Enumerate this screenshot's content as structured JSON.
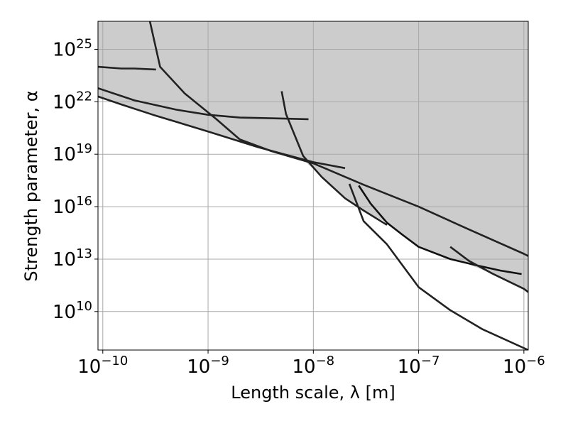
{
  "chart_data": {
    "type": "line",
    "title": "",
    "xlabel": "Length scale, λ [m]",
    "ylabel": "Strength parameter, α",
    "xscale": "log",
    "yscale": "log",
    "xlim": [
      9e-11,
      1.1e-06
    ],
    "ylim": [
      63000000.0,
      4e+26
    ],
    "grid": true,
    "shaded_region": "excluded area above the constraint curves (gray)",
    "x_ticks": [
      {
        "value": 1e-10,
        "base": "10",
        "exp": "−10"
      },
      {
        "value": 1e-09,
        "base": "10",
        "exp": "−9"
      },
      {
        "value": 1e-08,
        "base": "10",
        "exp": "−8"
      },
      {
        "value": 1e-07,
        "base": "10",
        "exp": "−7"
      },
      {
        "value": 1e-06,
        "base": "10",
        "exp": "−6"
      }
    ],
    "y_ticks": [
      {
        "value": 10000000000.0,
        "base": "10",
        "exp": "10"
      },
      {
        "value": 10000000000000.0,
        "base": "10",
        "exp": "13"
      },
      {
        "value": 1e+16,
        "base": "10",
        "exp": "16"
      },
      {
        "value": 1e+19,
        "base": "10",
        "exp": "19"
      },
      {
        "value": 1e+22,
        "base": "10",
        "exp": "22"
      },
      {
        "value": 1e+25,
        "base": "10",
        "exp": "25"
      }
    ],
    "series": [
      {
        "color": "#222222",
        "points": [
          [
            9e-11,
            2e+22
          ],
          [
            1.5e-10,
            7e+21
          ],
          [
            3e-10,
            1.8e+21
          ],
          [
            1e-09,
            2e+20
          ],
          [
            3e-09,
            2.5e+19
          ],
          [
            1e-08,
            3.5e+18
          ],
          [
            2e-08,
            1.6e+18
          ]
        ]
      },
      {
        "color": "#222222",
        "points": [
          [
            9e-11,
            6e+22
          ],
          [
            2e-10,
            1.2e+22
          ],
          [
            5e-10,
            3.5e+21
          ],
          [
            1e-09,
            1.8e+21
          ],
          [
            2e-09,
            1.25e+21
          ],
          [
            5e-09,
            1.1e+21
          ],
          [
            9e-09,
            1e+21
          ]
        ]
      },
      {
        "color": "#222222",
        "points": [
          [
            9e-11,
            1e+24
          ],
          [
            1.5e-10,
            8e+23
          ],
          [
            2e-10,
            8e+23
          ],
          [
            3.2e-10,
            7e+23
          ]
        ]
      },
      {
        "color": "#222222",
        "points": [
          [
            2.8e-10,
            4e+26
          ],
          [
            3.5e-10,
            1e+24
          ],
          [
            6e-10,
            3e+22
          ],
          [
            1.2e-09,
            1e+21
          ],
          [
            2e-09,
            7e+19
          ],
          [
            4e-09,
            1.5e+19
          ],
          [
            1e-08,
            3e+18
          ],
          [
            3e-08,
            1.8e+17
          ],
          [
            1e-07,
            1e+16
          ],
          [
            3e-07,
            500000000000000.0
          ],
          [
            1e-06,
            20000000000000.0
          ],
          [
            1.1e-06,
            15000000000000.0
          ]
        ]
      },
      {
        "color": "#222222",
        "points": [
          [
            5e-09,
            4e+22
          ],
          [
            5.5e-09,
            2e+21
          ],
          [
            8e-09,
            8e+18
          ],
          [
            1.2e-08,
            5e+17
          ],
          [
            2e-08,
            3e+16
          ],
          [
            3e-08,
            6000000000000000.0
          ],
          [
            5e-08,
            900000000000000.0
          ]
        ]
      },
      {
        "color": "#111111",
        "points": [
          [
            2.7e-08,
            1.6e+17
          ],
          [
            3.5e-08,
            1.5e+16
          ],
          [
            5e-08,
            1200000000000000.0
          ],
          [
            7e-08,
            250000000000000.0
          ],
          [
            1e-07,
            50000000000000.0
          ],
          [
            2e-07,
            10000000000000.0
          ],
          [
            3.5e-07,
            4500000000000.0
          ],
          [
            6e-07,
            2200000000000.0
          ],
          [
            9.5e-07,
            1400000000000.0
          ]
        ]
      },
      {
        "color": "#222222",
        "points": [
          [
            2.2e-08,
            2e+17
          ],
          [
            3e-08,
            1500000000000000.0
          ],
          [
            5e-08,
            70000000000000.0
          ],
          [
            1e-07,
            250000000000.0
          ],
          [
            2e-07,
            12000000000.0
          ],
          [
            4e-07,
            1000000000.0
          ],
          [
            1.1e-06,
            63000000.0
          ]
        ]
      },
      {
        "color": "#222222",
        "points": [
          [
            2e-07,
            50000000000000.0
          ],
          [
            3e-07,
            8000000000000.0
          ],
          [
            5e-07,
            1500000000000.0
          ],
          [
            1e-06,
            200000000000.0
          ],
          [
            1.1e-06,
            130000000000.0
          ]
        ]
      }
    ],
    "shade": {
      "color": "#cccccc",
      "boundary": [
        [
          9e-11,
          2e+22
        ],
        [
          1.5e-10,
          7e+21
        ],
        [
          3e-10,
          1.8e+21
        ],
        [
          1e-09,
          2e+20
        ],
        [
          3e-09,
          2.5e+19
        ],
        [
          8e-09,
          5e+18
        ],
        [
          1.2e-08,
          5e+17
        ],
        [
          2e-08,
          3e+16
        ],
        [
          3e-08,
          6000000000000000.0
        ],
        [
          5e-08,
          1200000000000000.0
        ],
        [
          7e-08,
          250000000000000.0
        ],
        [
          1e-07,
          50000000000000.0
        ],
        [
          2e-07,
          10000000000000.0
        ],
        [
          3e-07,
          5000000000000.0
        ],
        [
          5e-07,
          1500000000000.0
        ],
        [
          1e-06,
          200000000000.0
        ],
        [
          1.1e-06,
          130000000000.0
        ]
      ]
    }
  }
}
